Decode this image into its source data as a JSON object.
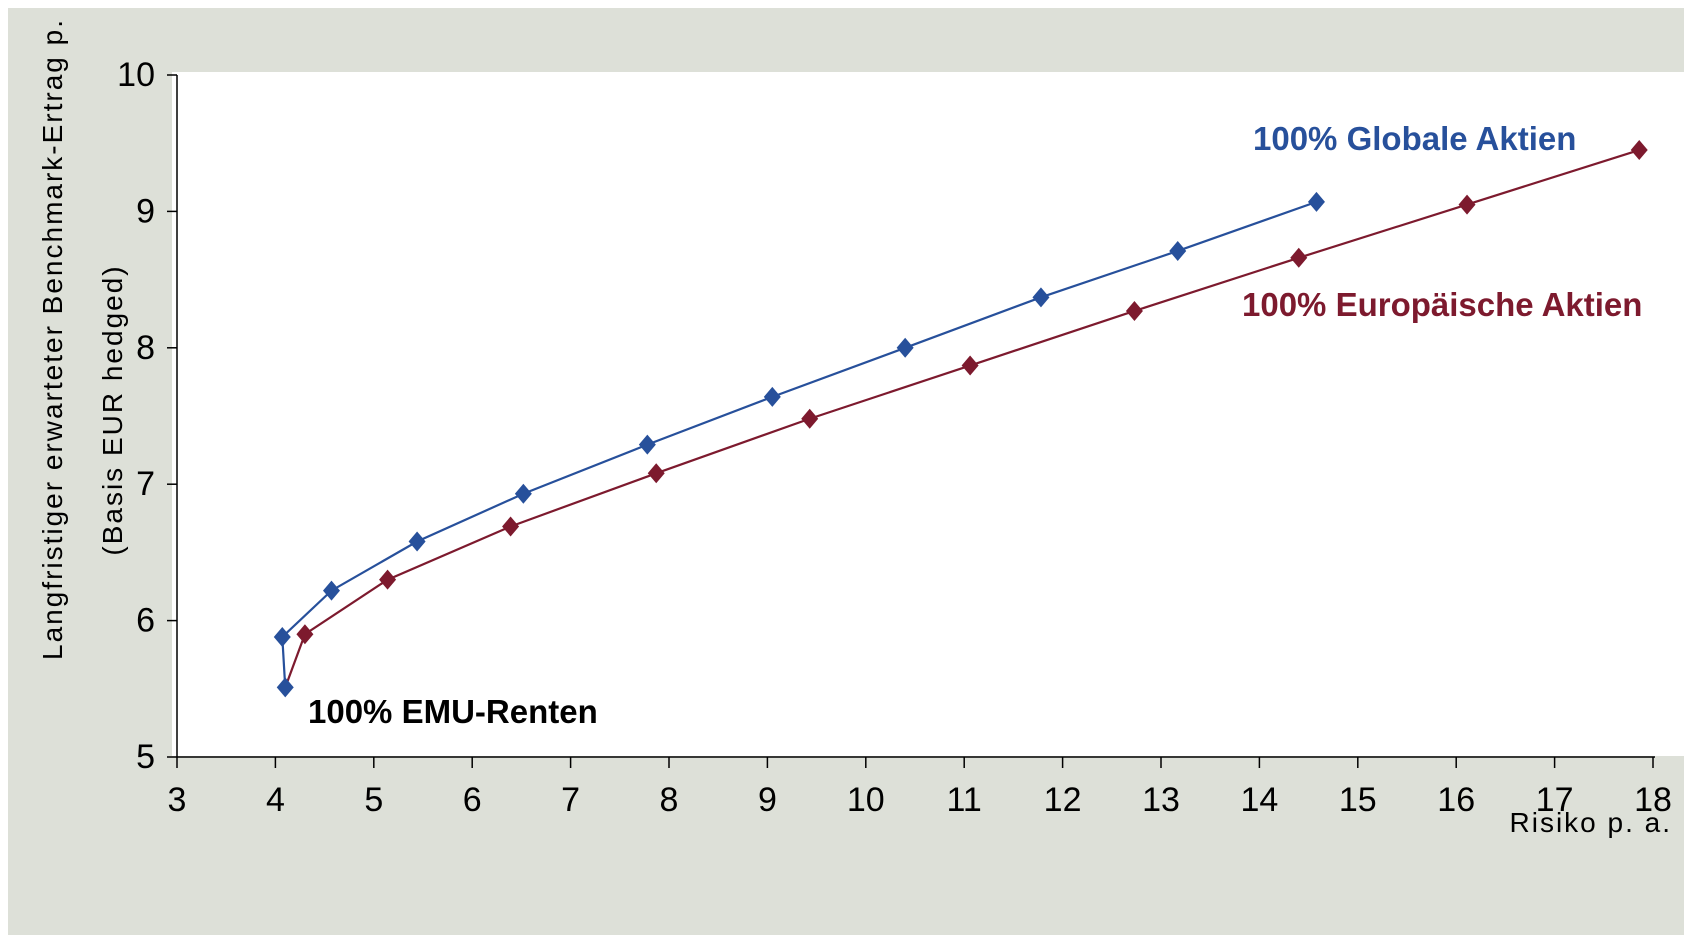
{
  "chart_data": {
    "type": "line",
    "title": "",
    "xlabel": "Risiko p. a.",
    "ylabel": "Langfristiger erwarteter Benchmark-Ertrag p.",
    "ylabel_sub": "(Basis EUR hedged)",
    "xlim": [
      3,
      18
    ],
    "ylim": [
      5,
      10
    ],
    "x_ticks": [
      3,
      4,
      5,
      6,
      7,
      8,
      9,
      10,
      11,
      12,
      13,
      14,
      15,
      16,
      17,
      18
    ],
    "y_ticks": [
      5,
      6,
      7,
      8,
      9,
      10
    ],
    "grid": false,
    "legend": "none",
    "colors": {
      "background": "#dde0d8",
      "plot_area": "#ffffff",
      "global": "#27509b",
      "europe": "#7d1a2e"
    },
    "series": [
      {
        "key": "global",
        "x": [
          4.1,
          4.07,
          4.57,
          5.44,
          6.52,
          7.78,
          9.05,
          10.4,
          11.78,
          13.17,
          14.58
        ],
        "y": [
          5.51,
          5.88,
          6.22,
          6.58,
          6.93,
          7.29,
          7.64,
          8.0,
          8.37,
          8.71,
          9.07
        ]
      },
      {
        "key": "europe",
        "x": [
          4.1,
          4.3,
          5.14,
          6.39,
          7.87,
          9.43,
          11.06,
          12.73,
          14.4,
          16.11,
          17.86
        ],
        "y": [
          5.51,
          5.9,
          6.3,
          6.69,
          7.08,
          7.48,
          7.87,
          8.27,
          8.66,
          9.05,
          9.45
        ]
      }
    ],
    "annotations": [
      {
        "key": "global",
        "text": "100% Globale Aktien"
      },
      {
        "key": "europe",
        "text": "100% Europäische Aktien"
      },
      {
        "key": "emu",
        "text": "100% EMU-Renten"
      }
    ]
  }
}
